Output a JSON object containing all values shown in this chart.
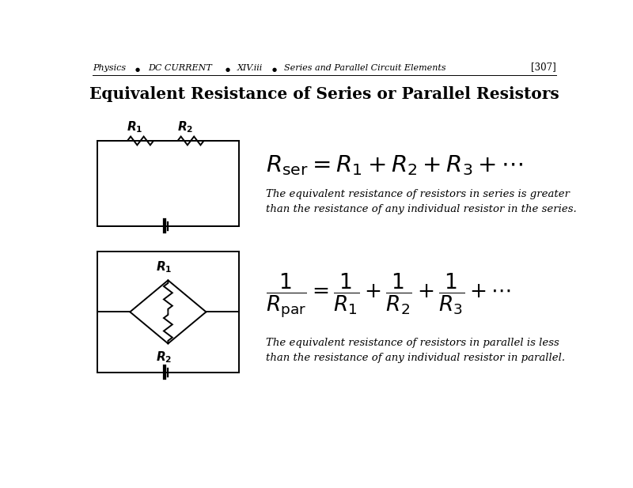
{
  "title": "Equivalent Resistance of Series or Parallel Resistors",
  "series_description": "The equivalent resistance of resistors in series is greater\nthan the resistance of any individual resistor in the series.",
  "parallel_description": "The equivalent resistance of resistors in parallel is less\nthan the resistance of any individual resistor in parallel.",
  "bg_color": "#ffffff",
  "line_color": "#000000",
  "title_fontsize": 14.5,
  "header_fontsize": 8.5
}
